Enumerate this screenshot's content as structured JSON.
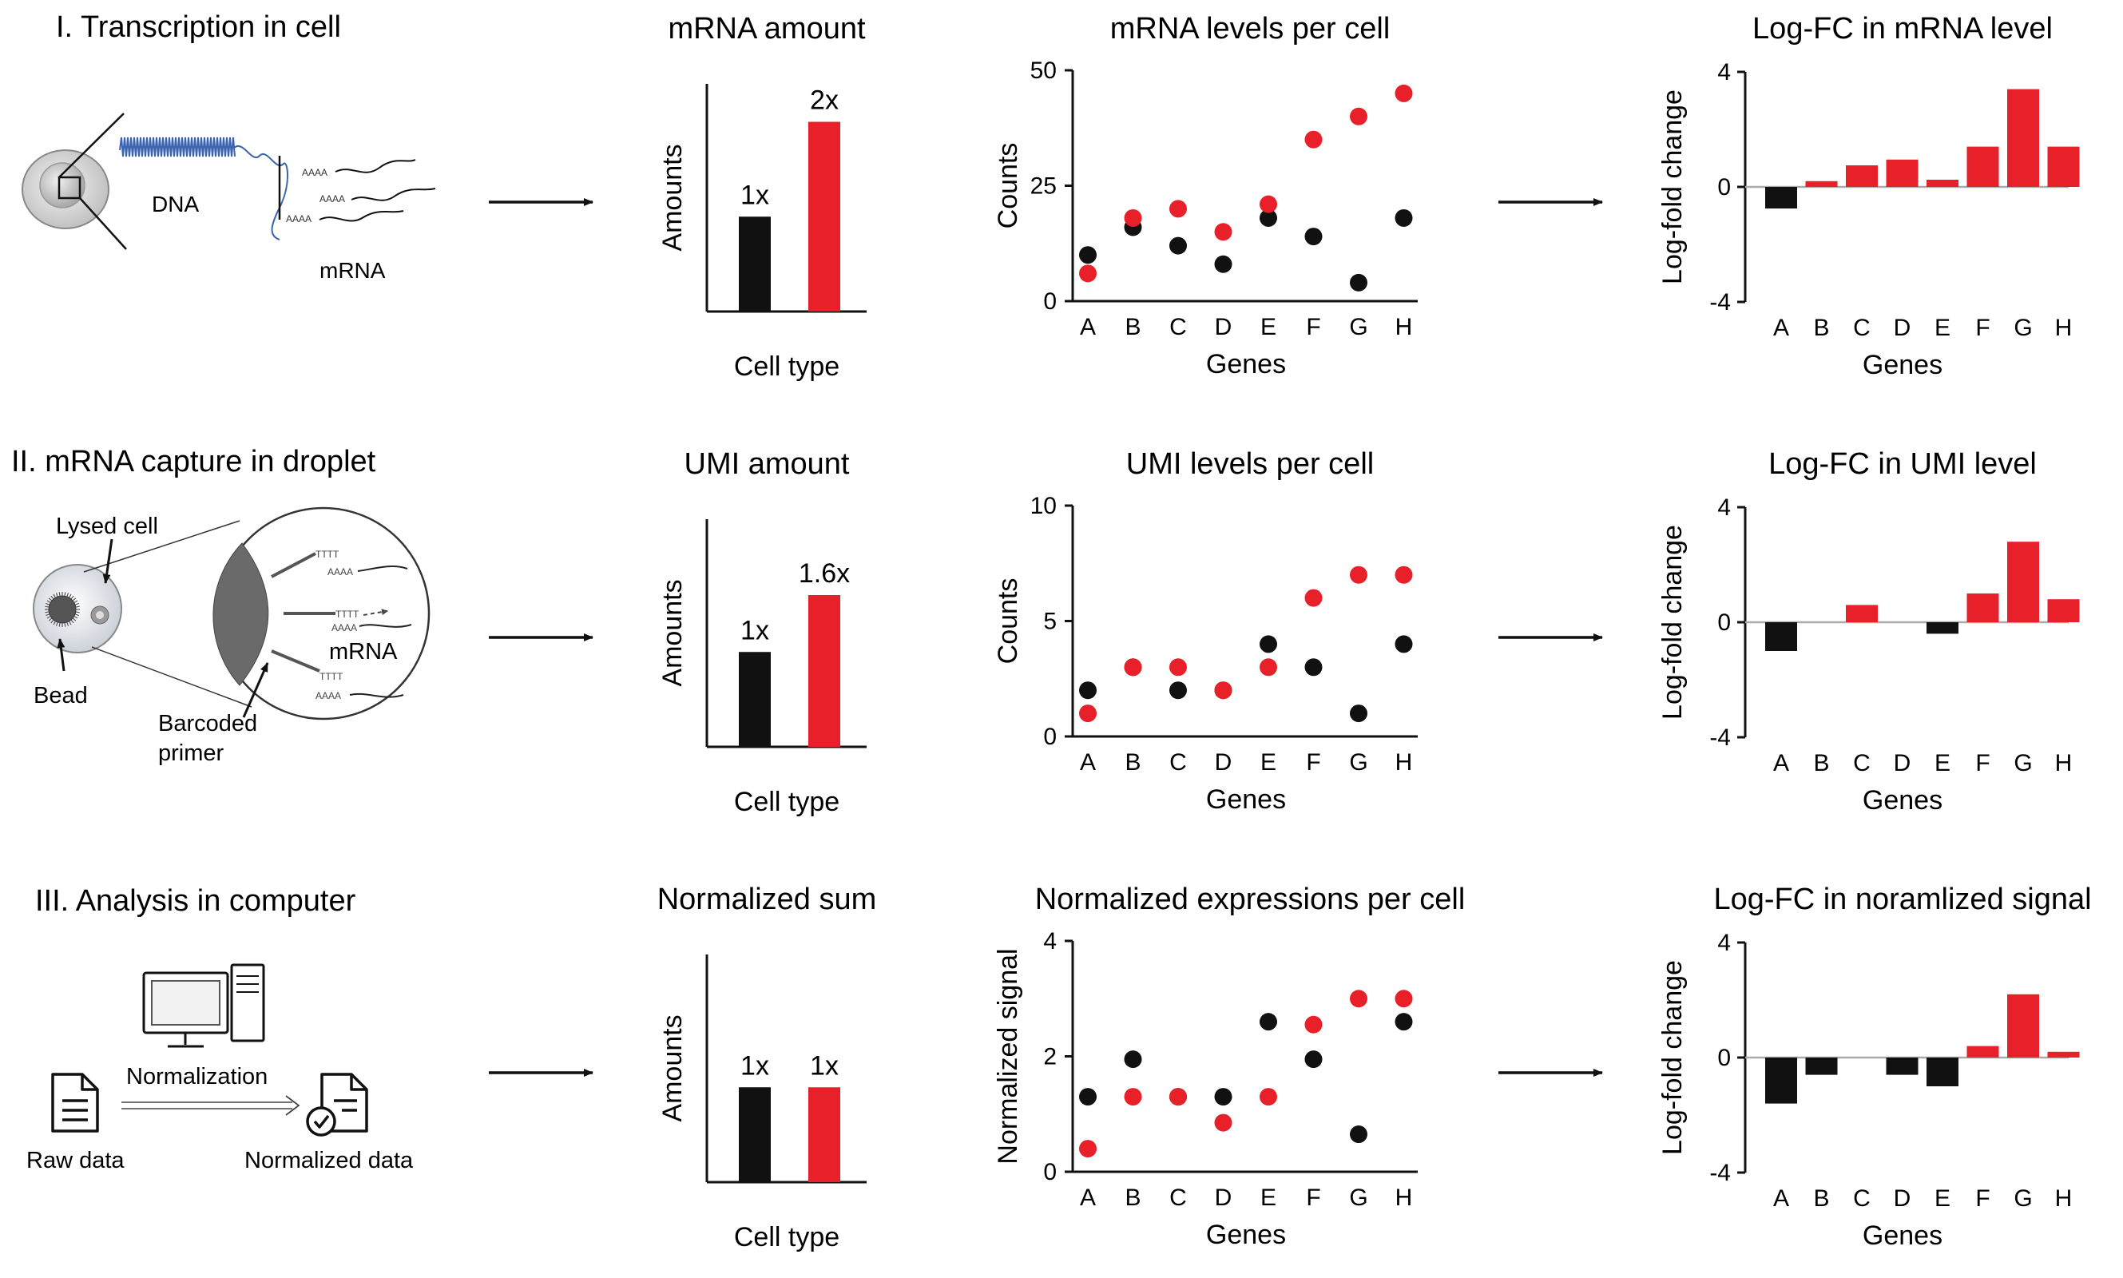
{
  "colors": {
    "red": "#e8202a",
    "black": "#111111"
  },
  "rows": [
    {
      "section_title": "I. Transcription in cell",
      "illustration": {
        "labels": [
          "DNA",
          "mRNA"
        ]
      },
      "amount_chart": {
        "title": "mRNA amount",
        "ylabel": "Amounts",
        "xlabel": "Cell type",
        "bars": [
          {
            "label": "1x",
            "value": 1
          },
          {
            "label": "2x",
            "value": 2
          }
        ]
      },
      "scatter_chart": {
        "title": "mRNA levels per cell",
        "ylabel": "Counts",
        "xlabel": "Genes",
        "yticks": [
          "0",
          "25",
          "50"
        ]
      },
      "logfc_chart": {
        "title": "Log-FC in mRNA level",
        "ylabel": "Log-fold change",
        "xlabel": "Genes",
        "yticks": [
          "-4",
          "0",
          "4"
        ]
      }
    },
    {
      "section_title": "II. mRNA capture in droplet",
      "illustration": {
        "labels": [
          "Lysed cell",
          "Bead",
          "Barcoded",
          "primer",
          "mRNA"
        ]
      },
      "amount_chart": {
        "title": "UMI amount",
        "ylabel": "Amounts",
        "xlabel": "Cell type",
        "bars": [
          {
            "label": "1x",
            "value": 1
          },
          {
            "label": "1.6x",
            "value": 1.6
          }
        ]
      },
      "scatter_chart": {
        "title": "UMI levels per cell",
        "ylabel": "Counts",
        "xlabel": "Genes",
        "yticks": [
          "0",
          "5",
          "10"
        ]
      },
      "logfc_chart": {
        "title": "Log-FC in UMI level",
        "ylabel": "Log-fold change",
        "xlabel": "Genes",
        "yticks": [
          "-4",
          "0",
          "4"
        ]
      }
    },
    {
      "section_title": "III. Analysis in computer",
      "illustration": {
        "labels": [
          "Normalization",
          "Raw data",
          "Normalized data"
        ]
      },
      "amount_chart": {
        "title": "Normalized sum",
        "ylabel": "Amounts",
        "xlabel": "Cell type",
        "bars": [
          {
            "label": "1x",
            "value": 1
          },
          {
            "label": "1x",
            "value": 1
          }
        ]
      },
      "scatter_chart": {
        "title": "Normalized expressions per cell",
        "ylabel": "Normalized signal",
        "xlabel": "Genes",
        "yticks": [
          "0",
          "2",
          "4"
        ]
      },
      "logfc_chart": {
        "title": "Log-FC in noramlized signal",
        "ylabel": "Log-fold change",
        "xlabel": "Genes",
        "yticks": [
          "-4",
          "0",
          "4"
        ]
      }
    }
  ],
  "chart_data": [
    {
      "type": "bar",
      "title": "mRNA amount",
      "xlabel": "Cell type",
      "ylabel": "Amounts",
      "categories": [
        "",
        ""
      ],
      "values": [
        1,
        2
      ],
      "data_labels": [
        "1x",
        "2x"
      ],
      "colors": [
        "black",
        "red"
      ]
    },
    {
      "type": "scatter",
      "title": "mRNA levels per cell",
      "xlabel": "Genes",
      "ylabel": "Counts",
      "x": [
        "A",
        "B",
        "C",
        "D",
        "E",
        "F",
        "G",
        "H"
      ],
      "ylim": [
        0,
        50
      ],
      "yticks": [
        0,
        25,
        50
      ],
      "series": [
        {
          "color": "black",
          "values": [
            10,
            16,
            12,
            8,
            18,
            14,
            4,
            18
          ]
        },
        {
          "color": "red",
          "values": [
            6,
            18,
            20,
            15,
            21,
            35,
            40,
            45
          ]
        }
      ]
    },
    {
      "type": "bar",
      "title": "Log-FC in mRNA level",
      "xlabel": "Genes",
      "ylabel": "Log-fold change",
      "categories": [
        "A",
        "B",
        "C",
        "D",
        "E",
        "F",
        "G",
        "H"
      ],
      "ylim": [
        -4,
        4
      ],
      "yticks": [
        -4,
        0,
        4
      ],
      "values": [
        -0.75,
        0.2,
        0.75,
        0.95,
        0.25,
        1.4,
        3.4,
        1.4
      ]
    },
    {
      "type": "bar",
      "title": "UMI amount",
      "xlabel": "Cell type",
      "ylabel": "Amounts",
      "categories": [
        "",
        ""
      ],
      "values": [
        1,
        1.6
      ],
      "data_labels": [
        "1x",
        "1.6x"
      ],
      "colors": [
        "black",
        "red"
      ]
    },
    {
      "type": "scatter",
      "title": "UMI levels per cell",
      "xlabel": "Genes",
      "ylabel": "Counts",
      "x": [
        "A",
        "B",
        "C",
        "D",
        "E",
        "F",
        "G",
        "H"
      ],
      "ylim": [
        0,
        10
      ],
      "yticks": [
        0,
        5,
        10
      ],
      "series": [
        {
          "color": "black",
          "values": [
            2,
            3,
            2,
            2,
            4,
            3,
            1,
            4
          ]
        },
        {
          "color": "red",
          "values": [
            1,
            3,
            3,
            2,
            3,
            6,
            7,
            7
          ]
        }
      ]
    },
    {
      "type": "bar",
      "title": "Log-FC in UMI level",
      "xlabel": "Genes",
      "ylabel": "Log-fold change",
      "categories": [
        "A",
        "B",
        "C",
        "D",
        "E",
        "F",
        "G",
        "H"
      ],
      "ylim": [
        -4,
        4
      ],
      "yticks": [
        -4,
        0,
        4
      ],
      "values": [
        -1.0,
        0,
        0.6,
        0,
        -0.4,
        1.0,
        2.8,
        0.8
      ]
    },
    {
      "type": "bar",
      "title": "Normalized sum",
      "xlabel": "Cell type",
      "ylabel": "Amounts",
      "categories": [
        "",
        ""
      ],
      "values": [
        1,
        1
      ],
      "data_labels": [
        "1x",
        "1x"
      ],
      "colors": [
        "black",
        "red"
      ]
    },
    {
      "type": "scatter",
      "title": "Normalized expressions per cell",
      "xlabel": "Genes",
      "ylabel": "Normalized signal",
      "x": [
        "A",
        "B",
        "C",
        "D",
        "E",
        "F",
        "G",
        "H"
      ],
      "ylim": [
        0,
        4
      ],
      "yticks": [
        0,
        2,
        4
      ],
      "series": [
        {
          "color": "black",
          "values": [
            1.3,
            1.95,
            1.3,
            1.3,
            2.6,
            1.95,
            0.65,
            2.6
          ]
        },
        {
          "color": "red",
          "values": [
            0.4,
            1.3,
            1.3,
            0.85,
            1.3,
            2.55,
            3.0,
            3.0
          ]
        }
      ]
    },
    {
      "type": "bar",
      "title": "Log-FC in noramlized signal",
      "xlabel": "Genes",
      "ylabel": "Log-fold change",
      "categories": [
        "A",
        "B",
        "C",
        "D",
        "E",
        "F",
        "G",
        "H"
      ],
      "ylim": [
        -4,
        4
      ],
      "yticks": [
        -4,
        0,
        4
      ],
      "values": [
        -1.6,
        -0.6,
        0,
        -0.6,
        -1.0,
        0.4,
        2.2,
        0.2
      ]
    }
  ]
}
